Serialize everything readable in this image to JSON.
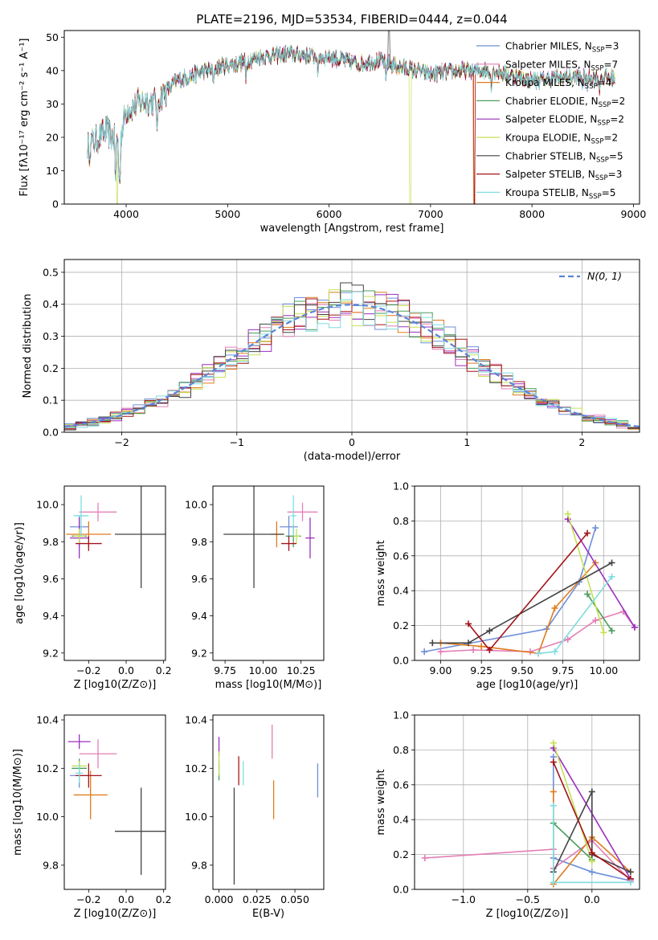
{
  "figure_title": "PLATE=2196, MJD=53534, FIBERID=0444, z=0.044",
  "models": [
    {
      "name": "Chabrier MILES",
      "nssp": "3",
      "color": "#6f8fd8"
    },
    {
      "name": "Salpeter MILES",
      "nssp": "7",
      "color": "#e37fb7"
    },
    {
      "name": "Kroupa MILES",
      "nssp": "4",
      "color": "#e07b1d"
    },
    {
      "name": "Chabrier ELODIE",
      "nssp": "2",
      "color": "#4a9e5a"
    },
    {
      "name": "Salpeter ELODIE",
      "nssp": "2",
      "color": "#9b2fbf"
    },
    {
      "name": "Kroupa ELODIE",
      "nssp": "2",
      "color": "#c5e055"
    },
    {
      "name": "Chabrier STELIB",
      "nssp": "5",
      "color": "#444444"
    },
    {
      "name": "Salpeter STELIB",
      "nssp": "3",
      "color": "#a3141a"
    },
    {
      "name": "Kroupa STELIB",
      "nssp": "5",
      "color": "#7fdce0"
    }
  ],
  "chart_data": [
    {
      "id": "spectrum",
      "type": "line",
      "xlabel": "wavelength [Angstrom, rest frame]",
      "ylabel": "Flux [fλ10⁻¹⁷ erg cm⁻² s⁻¹ A⁻¹]",
      "xlim": [
        3390,
        9060
      ],
      "ylim": [
        0,
        52
      ],
      "xticks": [
        4000,
        5000,
        6000,
        7000,
        8000,
        9000
      ],
      "yticks": [
        0,
        10,
        20,
        30,
        40,
        50
      ],
      "continuum": [
        [
          3620,
          18
        ],
        [
          3700,
          19
        ],
        [
          3800,
          22
        ],
        [
          3900,
          19
        ],
        [
          3950,
          21
        ],
        [
          4000,
          28
        ],
        [
          4100,
          30
        ],
        [
          4200,
          31
        ],
        [
          4300,
          31
        ],
        [
          4400,
          34
        ],
        [
          4500,
          37
        ],
        [
          4700,
          39
        ],
        [
          4900,
          41
        ],
        [
          5100,
          42
        ],
        [
          5300,
          44
        ],
        [
          5600,
          45
        ],
        [
          6000,
          44
        ],
        [
          6300,
          42
        ],
        [
          6500,
          43
        ],
        [
          6700,
          41
        ],
        [
          7000,
          39
        ],
        [
          7300,
          40
        ],
        [
          7600,
          40
        ],
        [
          8000,
          37
        ],
        [
          8300,
          38
        ],
        [
          8600,
          38
        ],
        [
          8820,
          38
        ]
      ],
      "dips": [
        [
          3640,
          11
        ],
        [
          3895,
          7
        ],
        [
          3935,
          5
        ],
        [
          4305,
          22
        ],
        [
          4860,
          35
        ],
        [
          5180,
          37
        ],
        [
          5890,
          38
        ],
        [
          6560,
          37
        ],
        [
          7600,
          33
        ],
        [
          8500,
          34
        ],
        [
          8545,
          34
        ],
        [
          8665,
          33
        ]
      ],
      "spikes": [
        {
          "model": 5,
          "x": 3910,
          "y": 0
        },
        {
          "model": 5,
          "x": 6800,
          "y": 0
        },
        {
          "model": 2,
          "x": 7430,
          "y": 0
        },
        {
          "model": 7,
          "x": 7435,
          "y": 0
        },
        {
          "model": 6,
          "x": 6590,
          "y": 52
        }
      ]
    },
    {
      "id": "residuals",
      "type": "histogram",
      "xlabel": "(data-model)/error",
      "ylabel": "Normed distribution",
      "xlim": [
        -2.5,
        2.5
      ],
      "ylim": [
        0,
        0.54
      ],
      "xticks": [
        -2,
        -1,
        0,
        1,
        2
      ],
      "yticks": [
        0.0,
        0.1,
        0.2,
        0.3,
        0.4,
        0.5
      ],
      "legend": "N(0, 1)",
      "legend_position": "top-right",
      "grid": true
    },
    {
      "id": "age-vs-Z",
      "type": "errorbar",
      "xlabel": "Z [log10(Z/Z⊙)]",
      "ylabel": "age [log10(age/yr)]",
      "xlim": [
        -0.33,
        0.21
      ],
      "ylim": [
        9.16,
        10.1
      ],
      "xticks": [
        -0.2,
        0.0,
        0.2
      ],
      "yticks": [
        9.2,
        9.4,
        9.6,
        9.8,
        10.0
      ],
      "points": [
        {
          "x": -0.25,
          "xerr": 0.05,
          "y": 9.88,
          "yerr": 0.06
        },
        {
          "x": -0.15,
          "xerr": 0.1,
          "y": 9.96,
          "yerr": 0.05
        },
        {
          "x": -0.2,
          "xerr": 0.12,
          "y": 9.84,
          "yerr": 0.07
        },
        {
          "x": -0.25,
          "xerr": 0.04,
          "y": 9.83,
          "yerr": 0.06
        },
        {
          "x": -0.25,
          "xerr": 0.05,
          "y": 9.82,
          "yerr": 0.11
        },
        {
          "x": -0.25,
          "xerr": 0.03,
          "y": 9.83,
          "yerr": 0.04
        },
        {
          "x": 0.08,
          "xerr": 0.14,
          "y": 9.84,
          "yerr": 0.29
        },
        {
          "x": -0.2,
          "xerr": 0.07,
          "y": 9.79,
          "yerr": 0.04
        },
        {
          "x": -0.24,
          "xerr": 0.04,
          "y": 9.94,
          "yerr": 0.11
        }
      ]
    },
    {
      "id": "age-vs-mass",
      "type": "errorbar",
      "xlabel": "mass [log10(M/M⊙)]",
      "xlim": [
        9.67,
        10.4
      ],
      "ylim": [
        9.16,
        10.1
      ],
      "xticks": [
        9.75,
        10.0,
        10.25
      ],
      "yticks": [
        9.2,
        9.4,
        9.6,
        9.8,
        10.0
      ],
      "points": [
        {
          "x": 10.17,
          "xerr": 0.06,
          "y": 9.88,
          "yerr": 0.06
        },
        {
          "x": 10.26,
          "xerr": 0.1,
          "y": 9.96,
          "yerr": 0.05
        },
        {
          "x": 10.09,
          "xerr": 0.04,
          "y": 9.84,
          "yerr": 0.07
        },
        {
          "x": 10.2,
          "xerr": 0.05,
          "y": 9.83,
          "yerr": 0.06
        },
        {
          "x": 10.31,
          "xerr": 0.03,
          "y": 9.82,
          "yerr": 0.11
        },
        {
          "x": 10.22,
          "xerr": 0.02,
          "y": 9.83,
          "yerr": 0.04
        },
        {
          "x": 9.94,
          "xerr": 0.2,
          "y": 9.84,
          "yerr": 0.29
        },
        {
          "x": 10.17,
          "xerr": 0.05,
          "y": 9.79,
          "yerr": 0.04
        },
        {
          "x": 10.2,
          "xerr": 0.02,
          "y": 9.94,
          "yerr": 0.11
        }
      ]
    },
    {
      "id": "weight-vs-age",
      "type": "line",
      "xlabel": "age [log10(age/yr)]",
      "ylabel": "mass weight",
      "xlim": [
        8.84,
        10.22
      ],
      "ylim": [
        0,
        1
      ],
      "xticks": [
        9.0,
        9.25,
        9.5,
        9.75,
        10.0
      ],
      "yticks": [
        0.0,
        0.2,
        0.4,
        0.6,
        0.8,
        1.0
      ],
      "grid": true,
      "series": [
        {
          "model": 0,
          "points": [
            [
              8.9,
              0.05
            ],
            [
              9.65,
              0.18
            ],
            [
              9.85,
              0.45
            ],
            [
              9.95,
              0.76
            ]
          ]
        },
        {
          "model": 1,
          "points": [
            [
              9.0,
              0.05
            ],
            [
              9.2,
              0.06
            ],
            [
              9.55,
              0.05
            ],
            [
              9.78,
              0.12
            ],
            [
              9.95,
              0.23
            ],
            [
              10.12,
              0.28
            ],
            [
              10.19,
              0.19
            ]
          ]
        },
        {
          "model": 2,
          "points": [
            [
              9.0,
              0.1
            ],
            [
              9.25,
              0.08
            ],
            [
              9.6,
              0.04
            ],
            [
              9.7,
              0.3
            ],
            [
              9.95,
              0.56
            ]
          ]
        },
        {
          "model": 3,
          "points": [
            [
              9.9,
              0.38
            ],
            [
              10.05,
              0.17
            ]
          ]
        },
        {
          "model": 4,
          "points": [
            [
              9.78,
              0.81
            ],
            [
              10.19,
              0.19
            ]
          ]
        },
        {
          "model": 5,
          "points": [
            [
              9.78,
              0.84
            ],
            [
              10.0,
              0.16
            ]
          ]
        },
        {
          "model": 6,
          "points": [
            [
              8.95,
              0.1
            ],
            [
              9.17,
              0.1
            ],
            [
              9.3,
              0.17
            ],
            [
              10.05,
              0.56
            ]
          ]
        },
        {
          "model": 7,
          "points": [
            [
              9.17,
              0.21
            ],
            [
              9.3,
              0.06
            ],
            [
              9.9,
              0.73
            ]
          ]
        },
        {
          "model": 8,
          "points": [
            [
              9.6,
              0.04
            ],
            [
              9.7,
              0.05
            ],
            [
              10.05,
              0.48
            ]
          ]
        }
      ]
    },
    {
      "id": "mass-vs-Z",
      "type": "errorbar",
      "xlabel": "Z [log10(Z/Z⊙)]",
      "ylabel": "mass [log10(M/M⊙)]",
      "xlim": [
        -0.33,
        0.21
      ],
      "ylim": [
        9.7,
        10.42
      ],
      "xticks": [
        -0.2,
        0.0,
        0.2
      ],
      "yticks": [
        9.8,
        10.0,
        10.2,
        10.4
      ],
      "points": [
        {
          "x": -0.25,
          "xerr": 0.05,
          "y": 10.17,
          "yerr": 0.05
        },
        {
          "x": -0.15,
          "xerr": 0.1,
          "y": 10.26,
          "yerr": 0.06
        },
        {
          "x": -0.19,
          "xerr": 0.09,
          "y": 10.09,
          "yerr": 0.1
        },
        {
          "x": -0.25,
          "xerr": 0.04,
          "y": 10.2,
          "yerr": 0.04
        },
        {
          "x": -0.25,
          "xerr": 0.06,
          "y": 10.31,
          "yerr": 0.03
        },
        {
          "x": -0.25,
          "xerr": 0.04,
          "y": 10.21,
          "yerr": 0.02
        },
        {
          "x": 0.08,
          "xerr": 0.14,
          "y": 9.94,
          "yerr": 0.18
        },
        {
          "x": -0.2,
          "xerr": 0.07,
          "y": 10.17,
          "yerr": 0.05
        },
        {
          "x": -0.25,
          "xerr": 0.02,
          "y": 10.18,
          "yerr": 0.04
        }
      ]
    },
    {
      "id": "mass-vs-ebv",
      "type": "errorbar",
      "xlabel": "E(B-V)",
      "xlim": [
        -0.004,
        0.069
      ],
      "ylim": [
        9.7,
        10.42
      ],
      "xticks": [
        0.0,
        0.025,
        0.05
      ],
      "yticks": [
        9.8,
        10.0,
        10.2,
        10.4
      ],
      "points": [
        {
          "x": 0.065,
          "y": 10.15,
          "yerr": 0.07
        },
        {
          "x": 0.035,
          "y": 10.31,
          "yerr": 0.07
        },
        {
          "x": 0.036,
          "y": 10.07,
          "yerr": 0.08
        },
        {
          "x": 0.0,
          "y": 10.19,
          "yerr": 0.04
        },
        {
          "x": 0.0,
          "y": 10.29,
          "yerr": 0.04
        },
        {
          "x": 0.0,
          "y": 10.22,
          "yerr": 0.05
        },
        {
          "x": 0.01,
          "y": 9.92,
          "yerr": 0.2
        },
        {
          "x": 0.013,
          "y": 10.19,
          "yerr": 0.06
        },
        {
          "x": 0.016,
          "y": 10.18,
          "yerr": 0.05
        }
      ]
    },
    {
      "id": "weight-vs-Z",
      "type": "line",
      "xlabel": "Z [log10(Z/Z⊙)]",
      "ylabel": "mass weight",
      "xlim": [
        -1.38,
        0.37
      ],
      "ylim": [
        0,
        1
      ],
      "xticks": [
        -1.0,
        -0.5,
        0.0
      ],
      "yticks": [
        0.0,
        0.2,
        0.4,
        0.6,
        0.8,
        1.0
      ],
      "grid": true,
      "series": [
        {
          "model": 0,
          "points": [
            [
              -0.3,
              0.76
            ],
            [
              -0.3,
              0.18
            ],
            [
              0.0,
              0.1
            ],
            [
              0.3,
              0.05
            ]
          ]
        },
        {
          "model": 1,
          "points": [
            [
              -1.3,
              0.18
            ],
            [
              -0.3,
              0.23
            ],
            [
              -0.3,
              0.12
            ],
            [
              0.0,
              0.28
            ],
            [
              0.3,
              0.05
            ]
          ]
        },
        {
          "model": 2,
          "points": [
            [
              -0.3,
              0.56
            ],
            [
              -0.3,
              0.03
            ],
            [
              0.0,
              0.3
            ],
            [
              0.3,
              0.1
            ]
          ]
        },
        {
          "model": 3,
          "points": [
            [
              -0.3,
              0.38
            ],
            [
              0.0,
              0.17
            ]
          ]
        },
        {
          "model": 4,
          "points": [
            [
              -0.3,
              0.81
            ],
            [
              0.3,
              0.06
            ]
          ]
        },
        {
          "model": 5,
          "points": [
            [
              -0.3,
              0.84
            ],
            [
              0.0,
              0.16
            ]
          ]
        },
        {
          "model": 6,
          "points": [
            [
              -0.3,
              0.1
            ],
            [
              0.0,
              0.56
            ],
            [
              0.0,
              0.2
            ],
            [
              0.3,
              0.1
            ]
          ]
        },
        {
          "model": 7,
          "points": [
            [
              -0.3,
              0.73
            ],
            [
              0.0,
              0.21
            ],
            [
              0.3,
              0.06
            ]
          ]
        },
        {
          "model": 8,
          "points": [
            [
              -0.3,
              0.48
            ],
            [
              -0.3,
              0.04
            ],
            [
              0.3,
              0.04
            ]
          ]
        }
      ]
    }
  ]
}
